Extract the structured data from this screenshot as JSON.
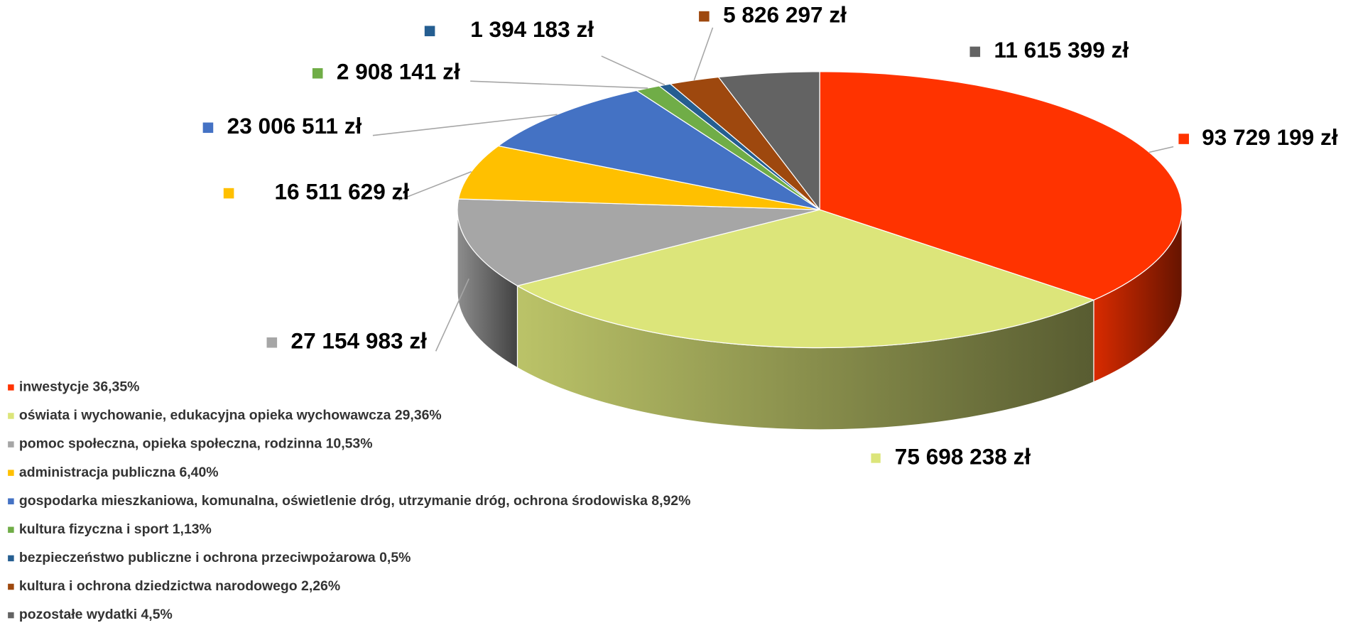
{
  "chart_data": {
    "type": "pie3d",
    "categories": [
      "inwestycje 36,35%",
      "oświata i wychowanie, edukacyjna opieka wychowawcza 29,36%",
      "pomoc społeczna, opieka społeczna, rodzinna 10,53%",
      "administracja publiczna 6,40%",
      "gospodarka mieszkaniowa, komunalna, oświetlenie dróg, utrzymanie dróg, ochrona środowiska 8,92%",
      "kultura fizyczna i sport 1,13%",
      "bezpieczeństwo publiczne i ochrona przeciwpożarowa 0,5%",
      "kultura i ochrona dziedzictwa narodowego 2,26%",
      "pozostałe wydatki 4,5%"
    ],
    "values": [
      93729199,
      75698238,
      27154983,
      16511629,
      23006511,
      2908141,
      1394183,
      5826297,
      11615399
    ],
    "value_labels": [
      "93 729 199 zł",
      "75 698 238 zł",
      "27 154 983 zł",
      "16 511 629 zł",
      "23 006 511 zł",
      "2 908 141 zł",
      "1 394 183 zł",
      "5 826 297 zł",
      "11 615 399 zł"
    ],
    "colors": [
      "#ff3300",
      "#dce57a",
      "#a6a6a6",
      "#ffc000",
      "#4472c4",
      "#70ad47",
      "#255e91",
      "#9e480e",
      "#636363"
    ],
    "legend": "bottom-left"
  }
}
